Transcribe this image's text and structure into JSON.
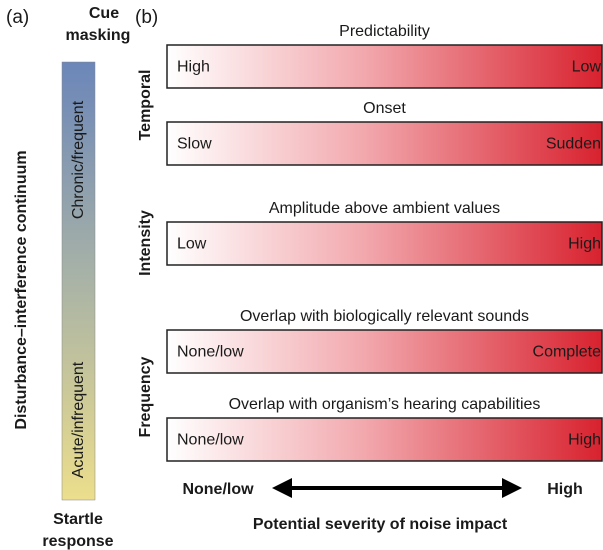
{
  "panel_a": {
    "label": "(a)",
    "top_label": [
      "Cue",
      "masking"
    ],
    "bottom_label": [
      "Startle",
      "response"
    ],
    "axis_label": "Disturbance–interference continuum",
    "upper_label": "Chronic/frequent",
    "lower_label": "Acute/infrequent"
  },
  "panel_b": {
    "label": "(b)",
    "groups": [
      {
        "name": "Temporal",
        "rows": [
          {
            "title": "Predictability",
            "left": "High",
            "right": "Low"
          },
          {
            "title": "Onset",
            "left": "Slow",
            "right": "Sudden"
          }
        ]
      },
      {
        "name": "Intensity",
        "rows": [
          {
            "title": "Amplitude above ambient values",
            "left": "Low",
            "right": "High"
          }
        ]
      },
      {
        "name": "Frequency",
        "rows": [
          {
            "title": "Overlap with biologically relevant sounds",
            "left": "None/low",
            "right": "Complete"
          },
          {
            "title": "Overlap with organism’s hearing capabilities",
            "left": "None/low",
            "right": "High"
          }
        ]
      }
    ],
    "scale": {
      "left": "None/low",
      "right": "High",
      "caption": "Potential severity of noise impact"
    }
  }
}
